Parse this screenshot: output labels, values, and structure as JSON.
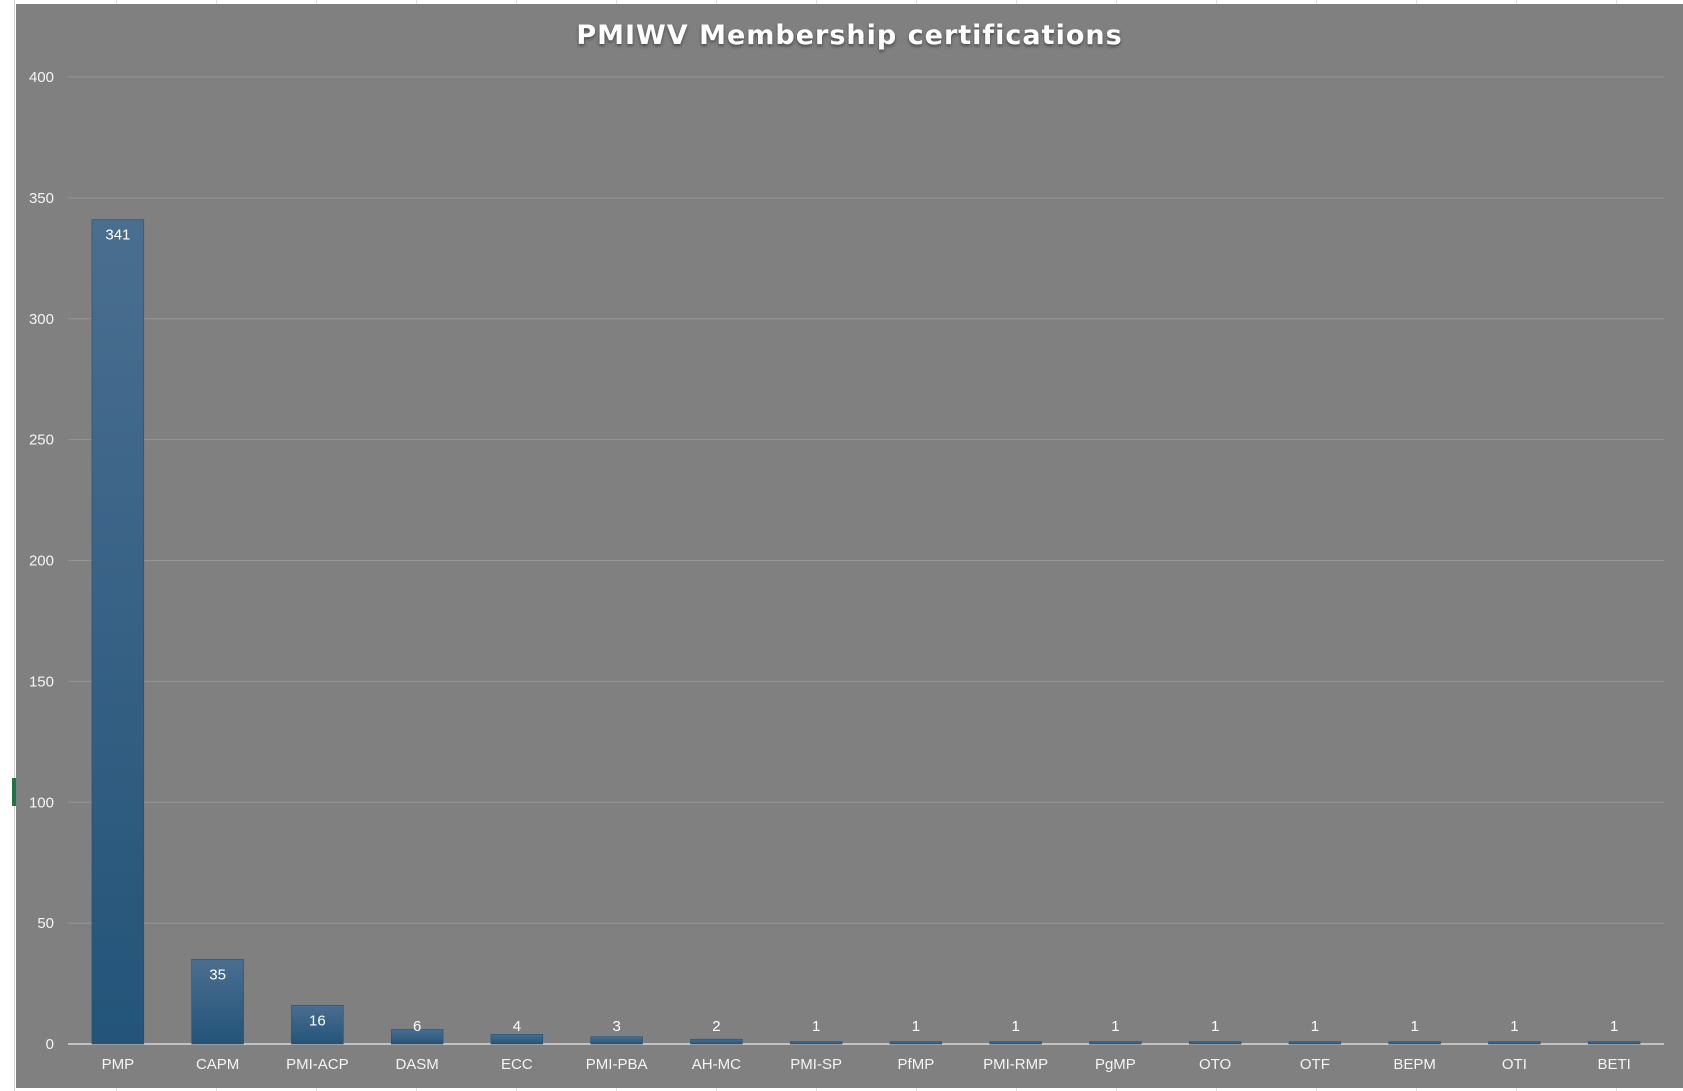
{
  "chart_data": {
    "type": "bar",
    "title": "PMIWV Membership certifications",
    "xlabel": "",
    "ylabel": "",
    "categories": [
      "PMP",
      "CAPM",
      "PMI-ACP",
      "DASM",
      "ECC",
      "PMI-PBA",
      "AH-MC",
      "PMI-SP",
      "PfMP",
      "PMI-RMP",
      "PgMP",
      "OTO",
      "OTF",
      "BEPM",
      "OTI",
      "BETI"
    ],
    "values": [
      341,
      35,
      16,
      6,
      4,
      3,
      2,
      1,
      1,
      1,
      1,
      1,
      1,
      1,
      1,
      1
    ],
    "ylim": [
      0,
      400
    ],
    "yticks": [
      0,
      50,
      100,
      150,
      200,
      250,
      300,
      350,
      400
    ],
    "grid": true,
    "legend": "none",
    "colors": {
      "background": "#808080",
      "bar_top": "#4a6e90",
      "bar_bottom": "#235479",
      "gridline": "#959595",
      "text": "#ffffff"
    }
  }
}
